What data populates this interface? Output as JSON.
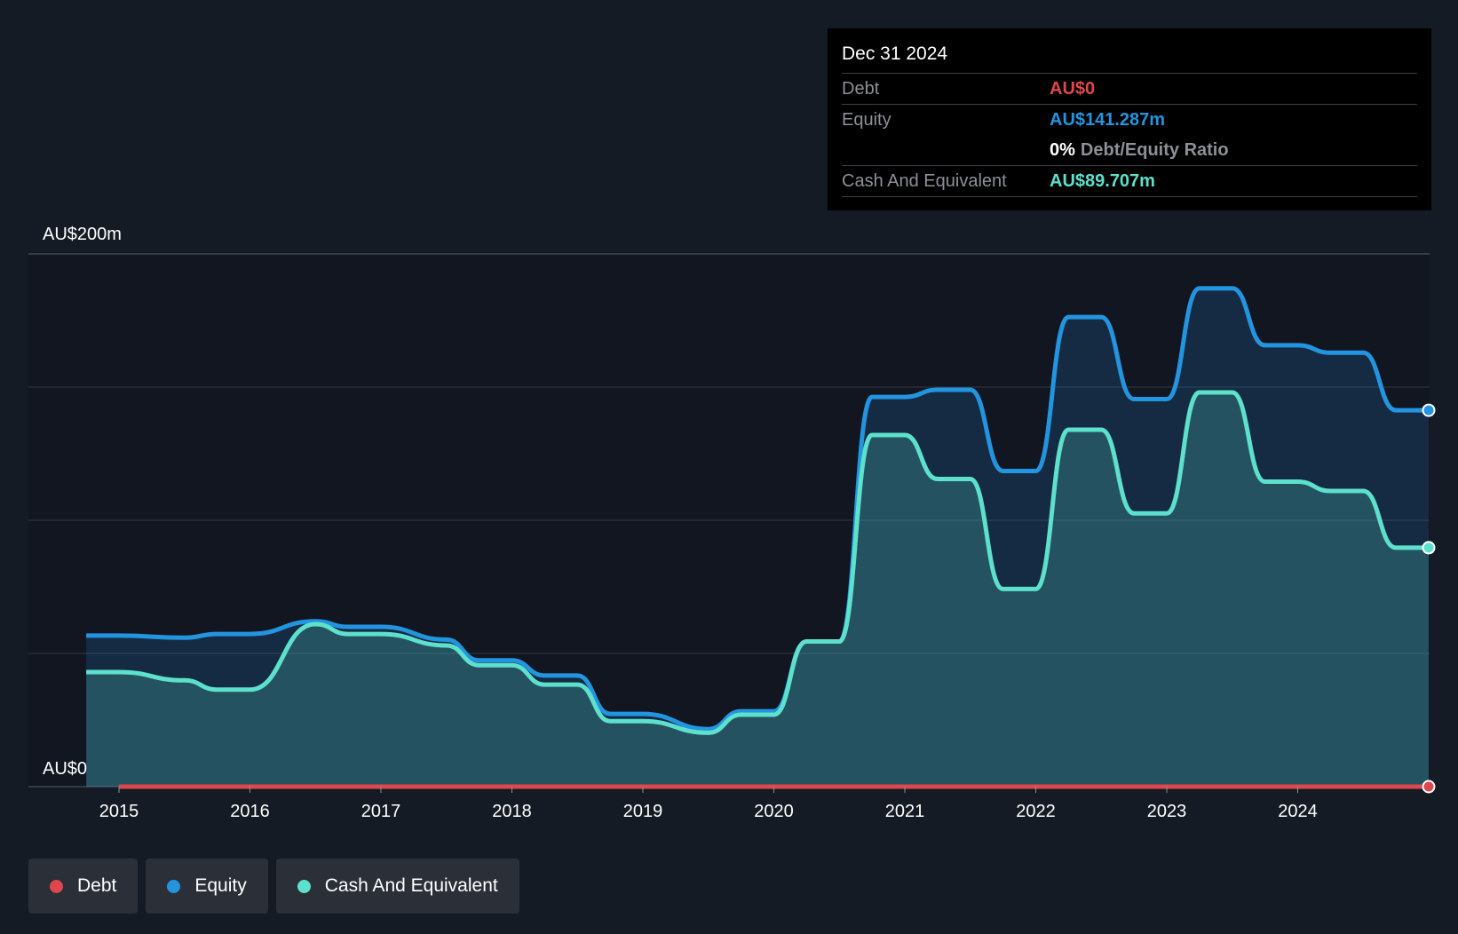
{
  "tooltip": {
    "date": "Dec 31 2024",
    "debt_label": "Debt",
    "debt_value": "AU$0",
    "equity_label": "Equity",
    "equity_value": "AU$141.287m",
    "ratio_value": "0%",
    "ratio_label": "Debt/Equity Ratio",
    "cash_label": "Cash And Equivalent",
    "cash_value": "AU$89.707m"
  },
  "legend": {
    "debt": "Debt",
    "equity": "Equity",
    "cash": "Cash And Equivalent"
  },
  "colors": {
    "debt": "#e0474c",
    "equity": "#2394df",
    "cash": "#5de0cc",
    "background": "#151b24",
    "plot_background": "#111620"
  },
  "chart_data": {
    "type": "area",
    "title": "",
    "xlabel": "",
    "ylabel": "",
    "y_top_label": "AU$200m",
    "y_bottom_label": "AU$0",
    "ylim": [
      0,
      200
    ],
    "y_gridlines": [
      0,
      50,
      100,
      150,
      200
    ],
    "xlim": [
      2014.55,
      2025.0
    ],
    "x_ticks": [
      2015,
      2016,
      2017,
      2018,
      2019,
      2020,
      2021,
      2022,
      2023,
      2024
    ],
    "x_tick_labels": [
      "2015",
      "2016",
      "2017",
      "2018",
      "2019",
      "2020",
      "2021",
      "2022",
      "2023",
      "2024"
    ],
    "series": [
      {
        "name": "Equity",
        "key": "equity",
        "x": [
          2014.75,
          2015.0,
          2015.5,
          2015.75,
          2016.0,
          2016.5,
          2016.75,
          2017.0,
          2017.5,
          2017.75,
          2018.0,
          2018.25,
          2018.5,
          2018.75,
          2019.0,
          2019.5,
          2019.75,
          2020.0,
          2020.25,
          2020.5,
          2020.75,
          2021.0,
          2021.25,
          2021.5,
          2021.75,
          2022.0,
          2022.25,
          2022.5,
          2022.75,
          2023.0,
          2023.25,
          2023.5,
          2023.75,
          2024.0,
          2024.25,
          2024.5,
          2024.75,
          2025.0
        ],
        "values": [
          56.7,
          56.7,
          55.9,
          57.3,
          57.3,
          62.1,
          60.0,
          60.0,
          55.2,
          47.4,
          47.4,
          41.7,
          41.7,
          27.3,
          27.3,
          21.6,
          28.3,
          28.3,
          54.5,
          54.5,
          146.3,
          146.3,
          149.0,
          149.0,
          118.5,
          118.5,
          176.3,
          176.3,
          145.5,
          145.5,
          187.1,
          187.1,
          165.7,
          165.7,
          162.9,
          162.9,
          141.3,
          141.3
        ]
      },
      {
        "name": "Cash And Equivalent",
        "key": "cash",
        "x": [
          2014.75,
          2015.0,
          2015.5,
          2015.75,
          2016.0,
          2016.5,
          2016.75,
          2017.0,
          2017.5,
          2017.75,
          2018.0,
          2018.25,
          2018.5,
          2018.75,
          2019.0,
          2019.5,
          2019.75,
          2020.0,
          2020.25,
          2020.5,
          2020.75,
          2021.0,
          2021.25,
          2021.5,
          2021.75,
          2022.0,
          2022.25,
          2022.5,
          2022.75,
          2023.0,
          2023.25,
          2023.5,
          2023.75,
          2024.0,
          2024.25,
          2024.5,
          2024.75,
          2025.0
        ],
        "values": [
          43.0,
          43.0,
          39.9,
          36.4,
          36.4,
          61.0,
          57.3,
          57.3,
          53.0,
          45.6,
          45.6,
          38.3,
          38.3,
          24.6,
          24.6,
          20.2,
          27.0,
          27.0,
          54.5,
          54.5,
          132.0,
          132.0,
          115.5,
          115.5,
          74.2,
          74.2,
          134.0,
          134.0,
          102.6,
          102.6,
          148.0,
          148.0,
          114.5,
          114.5,
          111.0,
          111.0,
          89.7,
          89.7
        ]
      },
      {
        "name": "Debt",
        "key": "debt",
        "x": [
          2015.0,
          2025.0
        ],
        "values": [
          0,
          0
        ]
      }
    ],
    "legend_position": "bottom-left"
  }
}
